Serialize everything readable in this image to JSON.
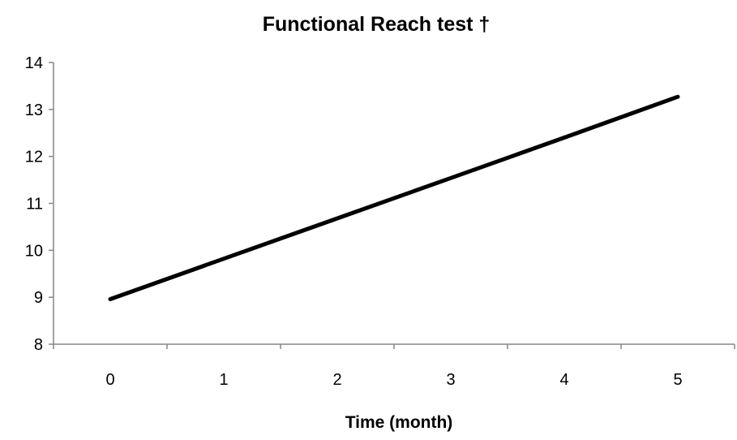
{
  "chart_data": {
    "type": "line",
    "title": "Functional Reach test †",
    "xlabel": "Time (month)",
    "ylabel": "",
    "x": [
      0,
      1,
      2,
      3,
      4,
      5
    ],
    "x_tick_labels": [
      "0",
      "1",
      "2",
      "3",
      "4",
      "5"
    ],
    "ylim": [
      8,
      14
    ],
    "y_ticks": [
      8,
      9,
      10,
      11,
      12,
      13,
      14
    ],
    "y_tick_labels": [
      "8",
      "9",
      "10",
      "11",
      "12",
      "13",
      "14"
    ],
    "series": [
      {
        "values": [
          8.96,
          9.82,
          10.68,
          11.54,
          12.4,
          13.27
        ]
      }
    ],
    "grid": false,
    "legend": "none",
    "colors": {
      "line": "#000000",
      "axis": "#868686"
    }
  }
}
